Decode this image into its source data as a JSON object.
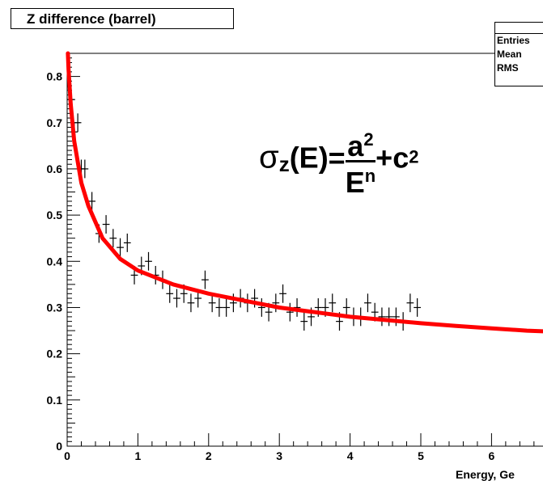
{
  "chart_data": {
    "type": "scatter",
    "title": "Z difference (barrel)",
    "xlabel": "Energy, Ge",
    "ylabel": "",
    "xlim": [
      0,
      7
    ],
    "ylim": [
      0,
      0.85
    ],
    "x_ticks": [
      "0",
      "1",
      "2",
      "3",
      "4",
      "5",
      "6"
    ],
    "y_ticks": [
      "0",
      "0.1",
      "0.2",
      "0.3",
      "0.4",
      "0.5",
      "0.6",
      "0.7",
      "0.8"
    ],
    "stats": [
      {
        "label": "Entries"
      },
      {
        "label": "Mean"
      },
      {
        "label": "RMS"
      }
    ],
    "formula": {
      "sigma": "σ",
      "subscript": "z",
      "lhs_rest": "(E)=",
      "num": "a",
      "num_exp": "2",
      "den": "E",
      "den_exp": "n",
      "plus": "+c",
      "c_exp": "2"
    },
    "series": [
      {
        "kind": "points",
        "x": [
          0.05,
          0.1,
          0.15,
          0.2,
          0.25,
          0.35,
          0.45,
          0.55,
          0.65,
          0.75,
          0.85,
          0.95,
          1.05,
          1.15,
          1.25,
          1.35,
          1.45,
          1.55,
          1.65,
          1.75,
          1.85,
          1.95,
          2.05,
          2.15,
          2.25,
          2.35,
          2.45,
          2.55,
          2.65,
          2.75,
          2.85,
          2.95,
          3.05,
          3.15,
          3.25,
          3.35,
          3.45,
          3.55,
          3.65,
          3.75,
          3.85,
          3.95,
          4.05,
          4.15,
          4.25,
          4.35,
          4.45,
          4.55,
          4.65,
          4.75,
          4.85,
          4.95
        ],
        "y": [
          0.75,
          0.68,
          0.7,
          0.6,
          0.6,
          0.53,
          0.46,
          0.48,
          0.45,
          0.43,
          0.44,
          0.37,
          0.39,
          0.4,
          0.37,
          0.36,
          0.33,
          0.32,
          0.33,
          0.31,
          0.32,
          0.36,
          0.31,
          0.3,
          0.3,
          0.31,
          0.32,
          0.31,
          0.32,
          0.3,
          0.29,
          0.31,
          0.33,
          0.29,
          0.3,
          0.27,
          0.28,
          0.3,
          0.3,
          0.31,
          0.27,
          0.3,
          0.28,
          0.28,
          0.31,
          0.29,
          0.28,
          0.28,
          0.28,
          0.27,
          0.31,
          0.3
        ],
        "x_err": 0.05,
        "y_err": 0.02,
        "color": "#000000"
      },
      {
        "kind": "fit-curve",
        "color": "#ff0000",
        "x": [
          0.01,
          0.02,
          0.05,
          0.1,
          0.2,
          0.3,
          0.5,
          0.75,
          1.0,
          1.5,
          2.0,
          2.5,
          3.0,
          3.5,
          4.0,
          4.5,
          5.0,
          5.5,
          6.0,
          6.5,
          7.0
        ],
        "y": [
          0.85,
          0.815,
          0.74,
          0.66,
          0.57,
          0.52,
          0.45,
          0.405,
          0.38,
          0.35,
          0.33,
          0.315,
          0.3,
          0.29,
          0.28,
          0.273,
          0.266,
          0.26,
          0.255,
          0.25,
          0.247
        ]
      }
    ]
  }
}
